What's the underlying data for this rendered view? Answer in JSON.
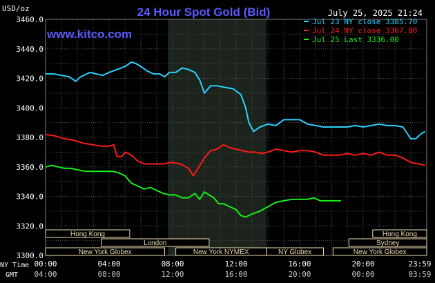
{
  "chart_data": {
    "type": "line",
    "title": "24 Hour Spot Gold (Bid)",
    "watermark": "www.kitco.com",
    "timestamp": "July 25, 2025 21:24",
    "ylabel": "USD/oz",
    "ylim": [
      3300,
      3460
    ],
    "yticks": [
      "3300.0",
      "3320.0",
      "3340.0",
      "3360.0",
      "3380.0",
      "3400.0",
      "3420.0",
      "3440.0",
      "3460.0"
    ],
    "x_axis_rows": [
      {
        "label": "NY Time",
        "ticks": [
          "00:00",
          "04:00",
          "08:00",
          "12:00",
          "16:00",
          "20:00",
          "23:59"
        ]
      },
      {
        "label": "GMT",
        "ticks": [
          "04:00",
          "08:00",
          "12:00",
          "16:00",
          "20:00",
          "00:00",
          "03:59"
        ]
      }
    ],
    "xlim_hours": [
      0,
      24
    ],
    "grid": true,
    "highlight_hours": [
      7.7,
      13.9
    ],
    "legend_position": "top-right",
    "colors": {
      "background": "#000000",
      "title": "#5a5aff",
      "watermark": "#5a5aff",
      "highlight": "#1c231c",
      "grid": "#505050",
      "session_fill": "#ecdcb0",
      "session_text": "#3a3aa0"
    },
    "series": [
      {
        "name": "Jul 23 NY close 3385.70",
        "color": "#2ad2ff",
        "points": [
          [
            0,
            3423
          ],
          [
            0.5,
            3423
          ],
          [
            1,
            3422
          ],
          [
            1.5,
            3421
          ],
          [
            1.9,
            3418
          ],
          [
            2.2,
            3421
          ],
          [
            2.8,
            3424
          ],
          [
            3.2,
            3423
          ],
          [
            3.6,
            3422
          ],
          [
            4,
            3424
          ],
          [
            4.5,
            3426
          ],
          [
            5,
            3428
          ],
          [
            5.4,
            3431
          ],
          [
            5.7,
            3430
          ],
          [
            6,
            3428
          ],
          [
            6.4,
            3425
          ],
          [
            6.8,
            3423
          ],
          [
            7.2,
            3423
          ],
          [
            7.5,
            3421
          ],
          [
            7.8,
            3424
          ],
          [
            8.2,
            3424
          ],
          [
            8.6,
            3427
          ],
          [
            9,
            3426
          ],
          [
            9.4,
            3424
          ],
          [
            9.7,
            3419
          ],
          [
            10,
            3410
          ],
          [
            10.4,
            3415
          ],
          [
            10.8,
            3415
          ],
          [
            11.2,
            3414
          ],
          [
            11.8,
            3413
          ],
          [
            12.3,
            3409
          ],
          [
            12.6,
            3400
          ],
          [
            12.8,
            3390
          ],
          [
            13.1,
            3384
          ],
          [
            13.5,
            3387
          ],
          [
            14,
            3389
          ],
          [
            14.5,
            3388
          ],
          [
            15,
            3392
          ],
          [
            15.5,
            3392
          ],
          [
            16,
            3392
          ],
          [
            16.5,
            3389
          ],
          [
            17,
            3388
          ],
          [
            17.5,
            3387
          ],
          [
            18,
            3387
          ],
          [
            18.5,
            3387
          ],
          [
            19,
            3387
          ],
          [
            19.5,
            3388
          ],
          [
            20,
            3387
          ],
          [
            20.5,
            3388
          ],
          [
            21,
            3389
          ],
          [
            21.5,
            3388
          ],
          [
            22,
            3388
          ],
          [
            22.5,
            3387
          ],
          [
            23,
            3379
          ],
          [
            23.3,
            3379
          ],
          [
            23.6,
            3382
          ],
          [
            23.9,
            3384
          ]
        ]
      },
      {
        "name": "Jul 24 NY close 3367.00",
        "color": "#ff1a1a",
        "points": [
          [
            0,
            3382
          ],
          [
            0.6,
            3381
          ],
          [
            1.2,
            3379
          ],
          [
            1.8,
            3378
          ],
          [
            2.4,
            3376
          ],
          [
            3,
            3375
          ],
          [
            3.5,
            3374
          ],
          [
            4,
            3374
          ],
          [
            4.3,
            3375
          ],
          [
            4.5,
            3367
          ],
          [
            4.8,
            3367
          ],
          [
            5,
            3370
          ],
          [
            5.4,
            3368
          ],
          [
            5.8,
            3364
          ],
          [
            6.2,
            3362
          ],
          [
            6.8,
            3362
          ],
          [
            7.4,
            3362
          ],
          [
            7.9,
            3363
          ],
          [
            8.5,
            3362
          ],
          [
            9,
            3359
          ],
          [
            9.3,
            3354
          ],
          [
            9.6,
            3359
          ],
          [
            10,
            3366
          ],
          [
            10.4,
            3371
          ],
          [
            10.8,
            3372
          ],
          [
            11.2,
            3375
          ],
          [
            11.6,
            3373
          ],
          [
            12,
            3372
          ],
          [
            12.4,
            3371
          ],
          [
            12.8,
            3370
          ],
          [
            13.2,
            3370
          ],
          [
            13.6,
            3369
          ],
          [
            14,
            3370
          ],
          [
            14.5,
            3372
          ],
          [
            15,
            3371
          ],
          [
            15.5,
            3370
          ],
          [
            16,
            3371
          ],
          [
            16.5,
            3371
          ],
          [
            17,
            3370
          ],
          [
            17.5,
            3368
          ],
          [
            18,
            3368
          ],
          [
            18.5,
            3368
          ],
          [
            19,
            3369
          ],
          [
            19.5,
            3368
          ],
          [
            20,
            3369
          ],
          [
            20.5,
            3368
          ],
          [
            21,
            3370
          ],
          [
            21.5,
            3368
          ],
          [
            22,
            3368
          ],
          [
            22.5,
            3366
          ],
          [
            23,
            3363
          ],
          [
            23.5,
            3362
          ],
          [
            23.9,
            3361
          ]
        ]
      },
      {
        "name": "Jul 25 Last 3336.00",
        "color": "#18f018",
        "points": [
          [
            0,
            3360
          ],
          [
            0.4,
            3361
          ],
          [
            0.8,
            3360
          ],
          [
            1.2,
            3359
          ],
          [
            1.6,
            3359
          ],
          [
            2,
            3358
          ],
          [
            2.5,
            3357
          ],
          [
            3,
            3357
          ],
          [
            3.6,
            3357
          ],
          [
            4.2,
            3357
          ],
          [
            4.6,
            3356
          ],
          [
            5,
            3354
          ],
          [
            5.4,
            3349
          ],
          [
            5.8,
            3347
          ],
          [
            6.2,
            3345
          ],
          [
            6.6,
            3346
          ],
          [
            7,
            3344
          ],
          [
            7.4,
            3342
          ],
          [
            7.8,
            3341
          ],
          [
            8.2,
            3341
          ],
          [
            8.6,
            3339
          ],
          [
            9,
            3339
          ],
          [
            9.4,
            3342
          ],
          [
            9.7,
            3338
          ],
          [
            10,
            3343
          ],
          [
            10.3,
            3341
          ],
          [
            10.6,
            3339
          ],
          [
            10.9,
            3335
          ],
          [
            11.2,
            3335
          ],
          [
            11.6,
            3333
          ],
          [
            12,
            3331
          ],
          [
            12.3,
            3327
          ],
          [
            12.6,
            3326
          ],
          [
            13,
            3328
          ],
          [
            13.5,
            3330
          ],
          [
            14,
            3333
          ],
          [
            14.5,
            3336
          ],
          [
            15,
            3337
          ],
          [
            15.5,
            3338
          ],
          [
            16,
            3338
          ],
          [
            16.5,
            3338
          ],
          [
            16.9,
            3339
          ],
          [
            17.3,
            3337
          ],
          [
            17.7,
            3337
          ],
          [
            18.2,
            3337
          ],
          [
            18.6,
            3337
          ]
        ]
      }
    ],
    "sessions": [
      {
        "name": "Hong Kong",
        "rows": [
          [
            0,
            5.3
          ]
        ]
      },
      {
        "name": "London",
        "rows": [
          [
            3.5,
            10.3
          ]
        ]
      },
      {
        "name": "New York Globex",
        "rows": [
          [
            0,
            7.5
          ]
        ]
      },
      {
        "name": "New York NYMEX",
        "rows": [
          [
            8.2,
            13.9
          ]
        ]
      },
      {
        "name": "NY Globex",
        "rows": [
          [
            13.9,
            17.5
          ]
        ]
      },
      {
        "name": "Hong Kong",
        "rows": [
          [
            20.6,
            24
          ]
        ]
      },
      {
        "name": "Sydney",
        "rows": [
          [
            19.1,
            24
          ]
        ]
      },
      {
        "name": "New York Globex",
        "rows": [
          [
            18.1,
            24
          ]
        ]
      }
    ]
  }
}
